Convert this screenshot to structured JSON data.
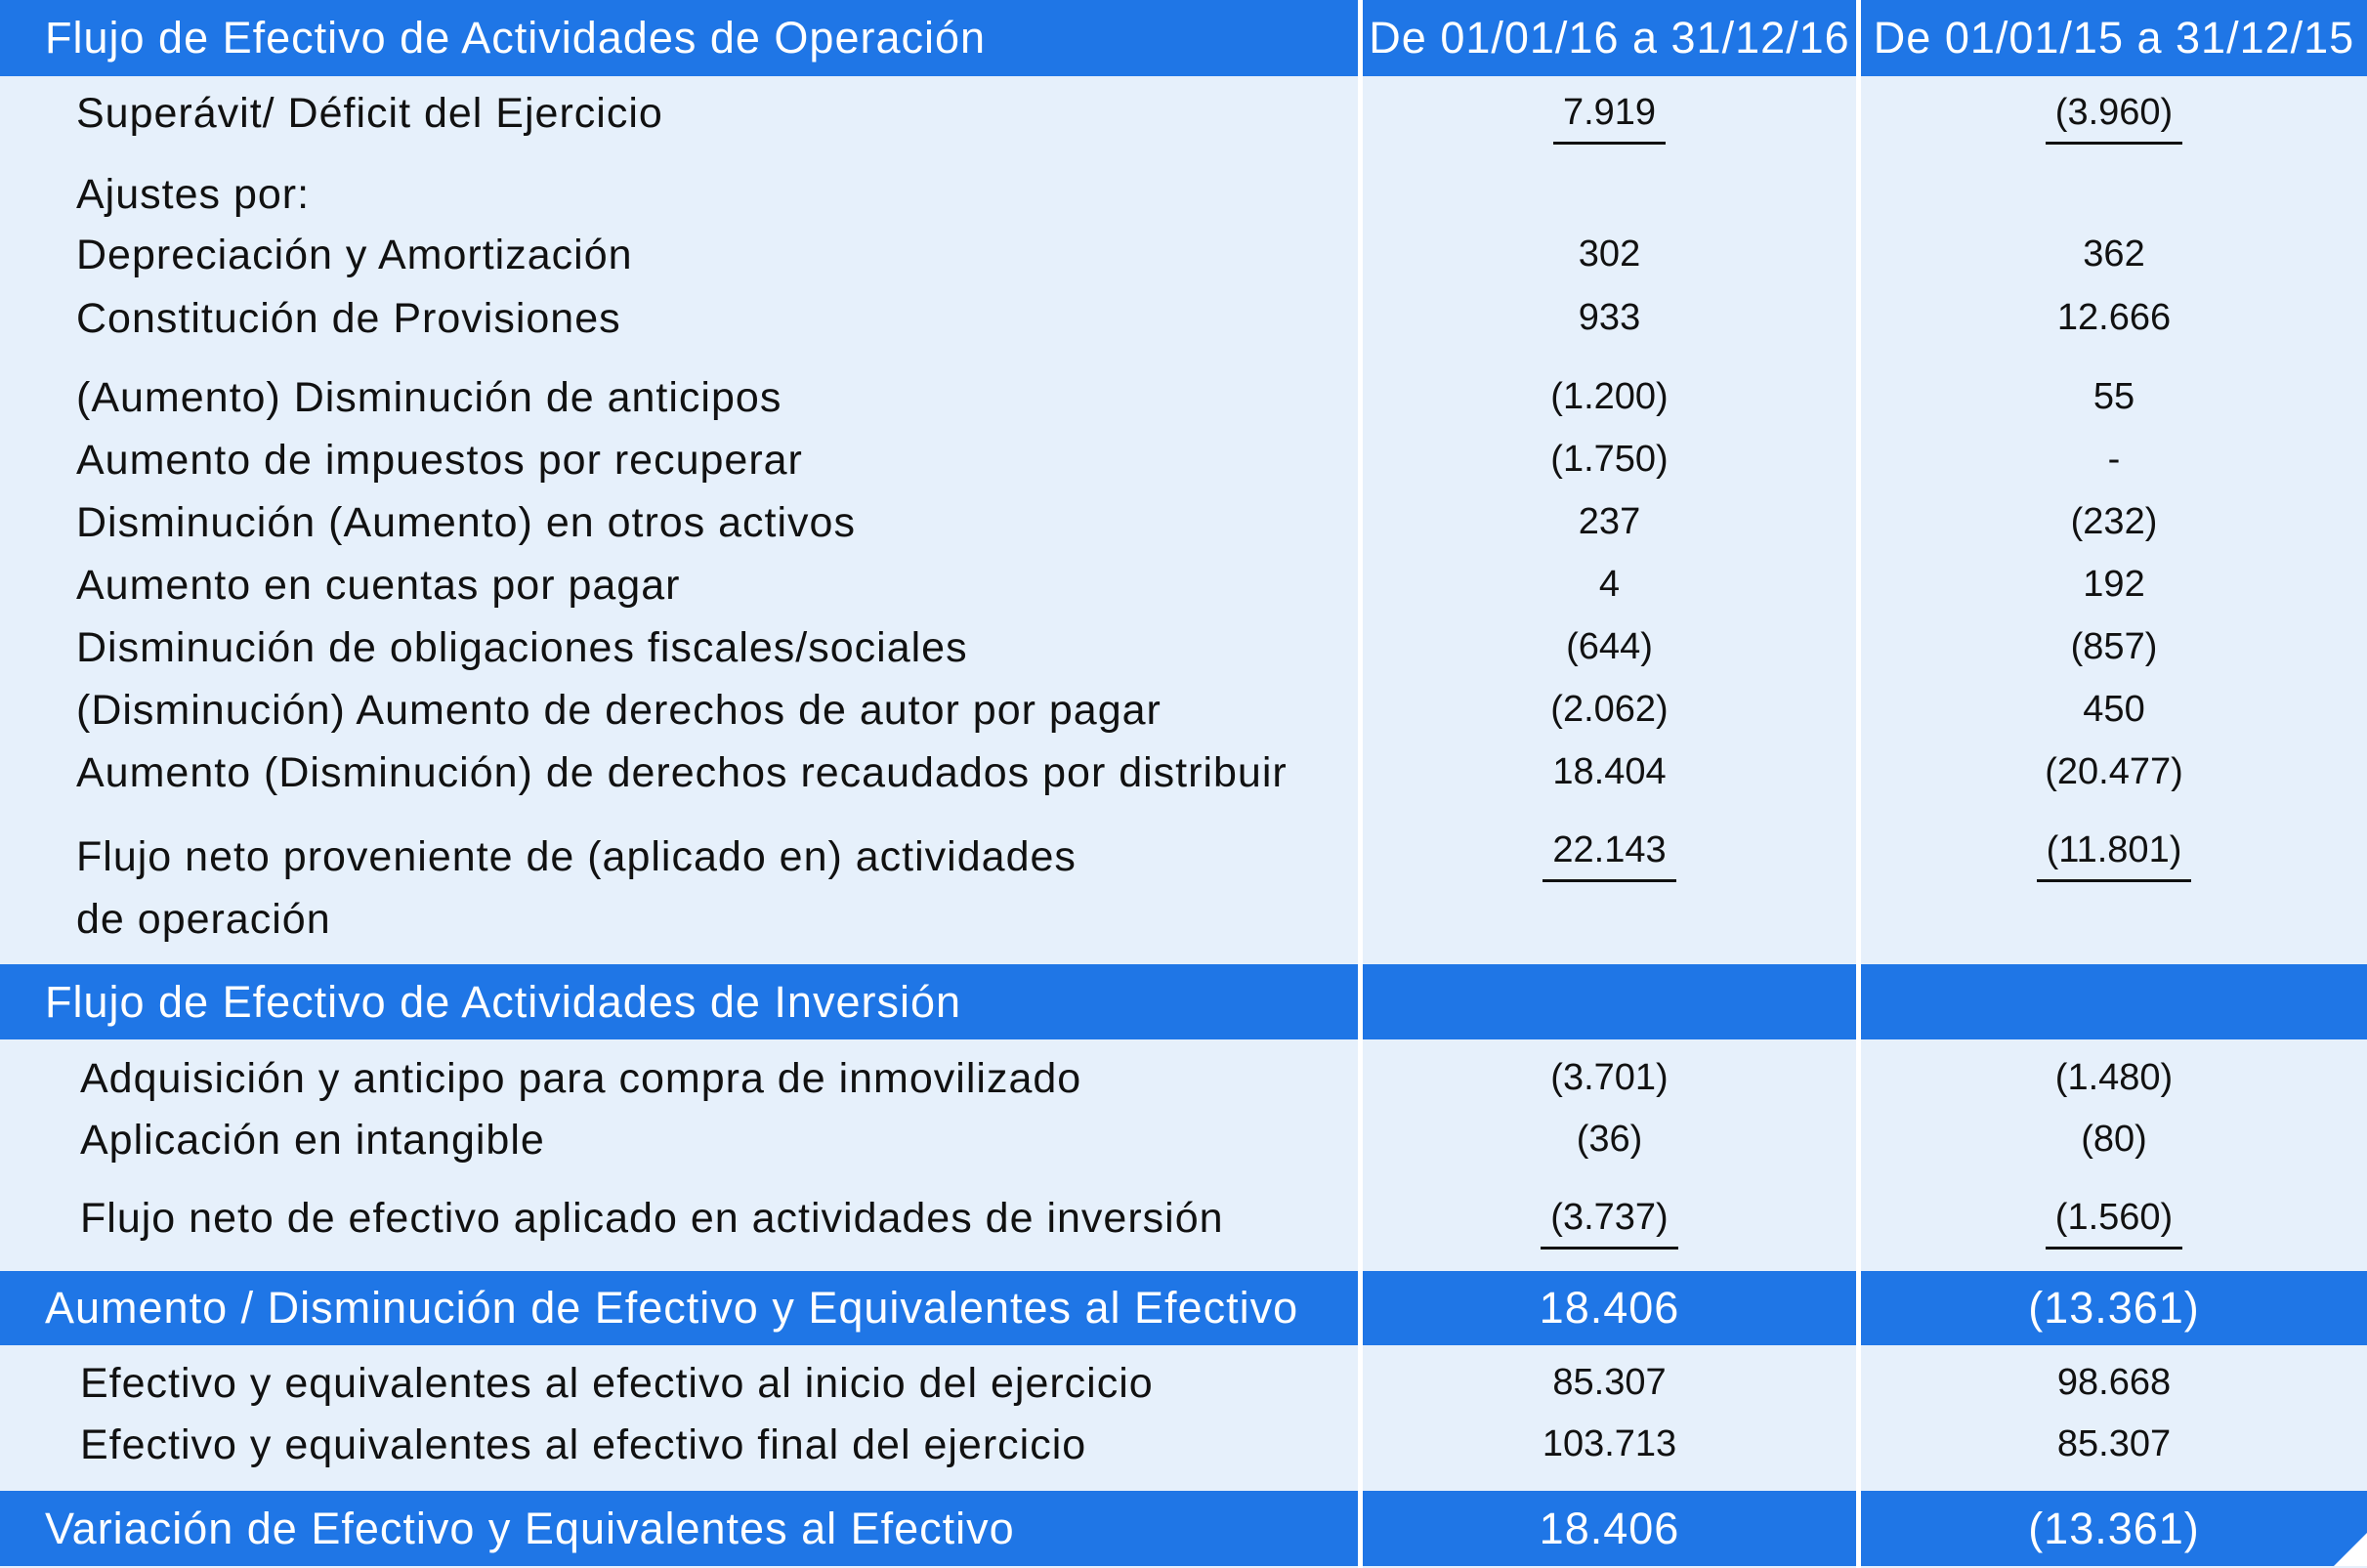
{
  "header": {
    "title": "Flujo de Efectivo de Actividades de Operación",
    "col1": "De 01/01/16 a 31/12/16",
    "col2": "De 01/01/15 a 31/12/15"
  },
  "operacion": {
    "superavit": {
      "label": "Superávit/ Déficit del Ejercicio",
      "v1": "7.919",
      "v2": "(3.960)"
    },
    "ajustes_label": "Ajustes por:",
    "depreciacion": {
      "label": "Depreciación y Amortización",
      "v1": "302",
      "v2": "362"
    },
    "provisiones": {
      "label": "Constitución de Provisiones",
      "v1": "933",
      "v2": "12.666"
    },
    "anticipos": {
      "label": "(Aumento) Disminución de anticipos",
      "v1": "(1.200)",
      "v2": "55"
    },
    "impuestos": {
      "label": "Aumento de impuestos por recuperar",
      "v1": "(1.750)",
      "v2": "-"
    },
    "otros_activos": {
      "label": "Disminución (Aumento) en otros activos",
      "v1": "237",
      "v2": "(232)"
    },
    "cuentas_pagar": {
      "label": "Aumento en cuentas por pagar",
      "v1": "4",
      "v2": "192"
    },
    "obligaciones": {
      "label": "Disminución de obligaciones fiscales/sociales",
      "v1": "(644)",
      "v2": "(857)"
    },
    "derechos_autor": {
      "label": "(Disminución) Aumento de derechos de autor por pagar",
      "v1": "(2.062)",
      "v2": "450"
    },
    "derechos_recaudados": {
      "label": "Aumento (Disminución) de derechos recaudados por distribuir",
      "v1": "18.404",
      "v2": "(20.477)"
    },
    "flujo_neto": {
      "label_line1": "Flujo neto proveniente de (aplicado en) actividades",
      "label_line2": "de operación",
      "v1": "22.143",
      "v2": "(11.801)"
    }
  },
  "inversion": {
    "title": "Flujo de Efectivo de Actividades de Inversión",
    "adquisicion": {
      "label": "Adquisición y anticipo para compra de inmovilizado",
      "v1": "(3.701)",
      "v2": "(1.480)"
    },
    "intangible": {
      "label": "Aplicación en intangible",
      "v1": "(36)",
      "v2": "(80)"
    },
    "flujo_neto": {
      "label": "Flujo neto de efectivo aplicado en actividades de inversión",
      "v1": "(3.737)",
      "v2": "(1.560)"
    }
  },
  "aumento": {
    "title": "Aumento / Disminución de Efectivo y Equivalentes al Efectivo",
    "v1": "18.406",
    "v2": "(13.361)"
  },
  "efectivo": {
    "inicio": {
      "label": "Efectivo y equivalentes al efectivo al inicio del ejercicio",
      "v1": "85.307",
      "v2": "98.668"
    },
    "final": {
      "label": "Efectivo y equivalentes al efectivo final del ejercicio",
      "v1": "103.713",
      "v2": "85.307"
    }
  },
  "variacion": {
    "title": "Variación de Efectivo y Equivalentes al Efectivo",
    "v1": "18.406",
    "v2": "(13.361)"
  },
  "colors": {
    "header_blue": "#1f76e6",
    "body_bg": "#e6f0fb",
    "text": "#111111"
  }
}
